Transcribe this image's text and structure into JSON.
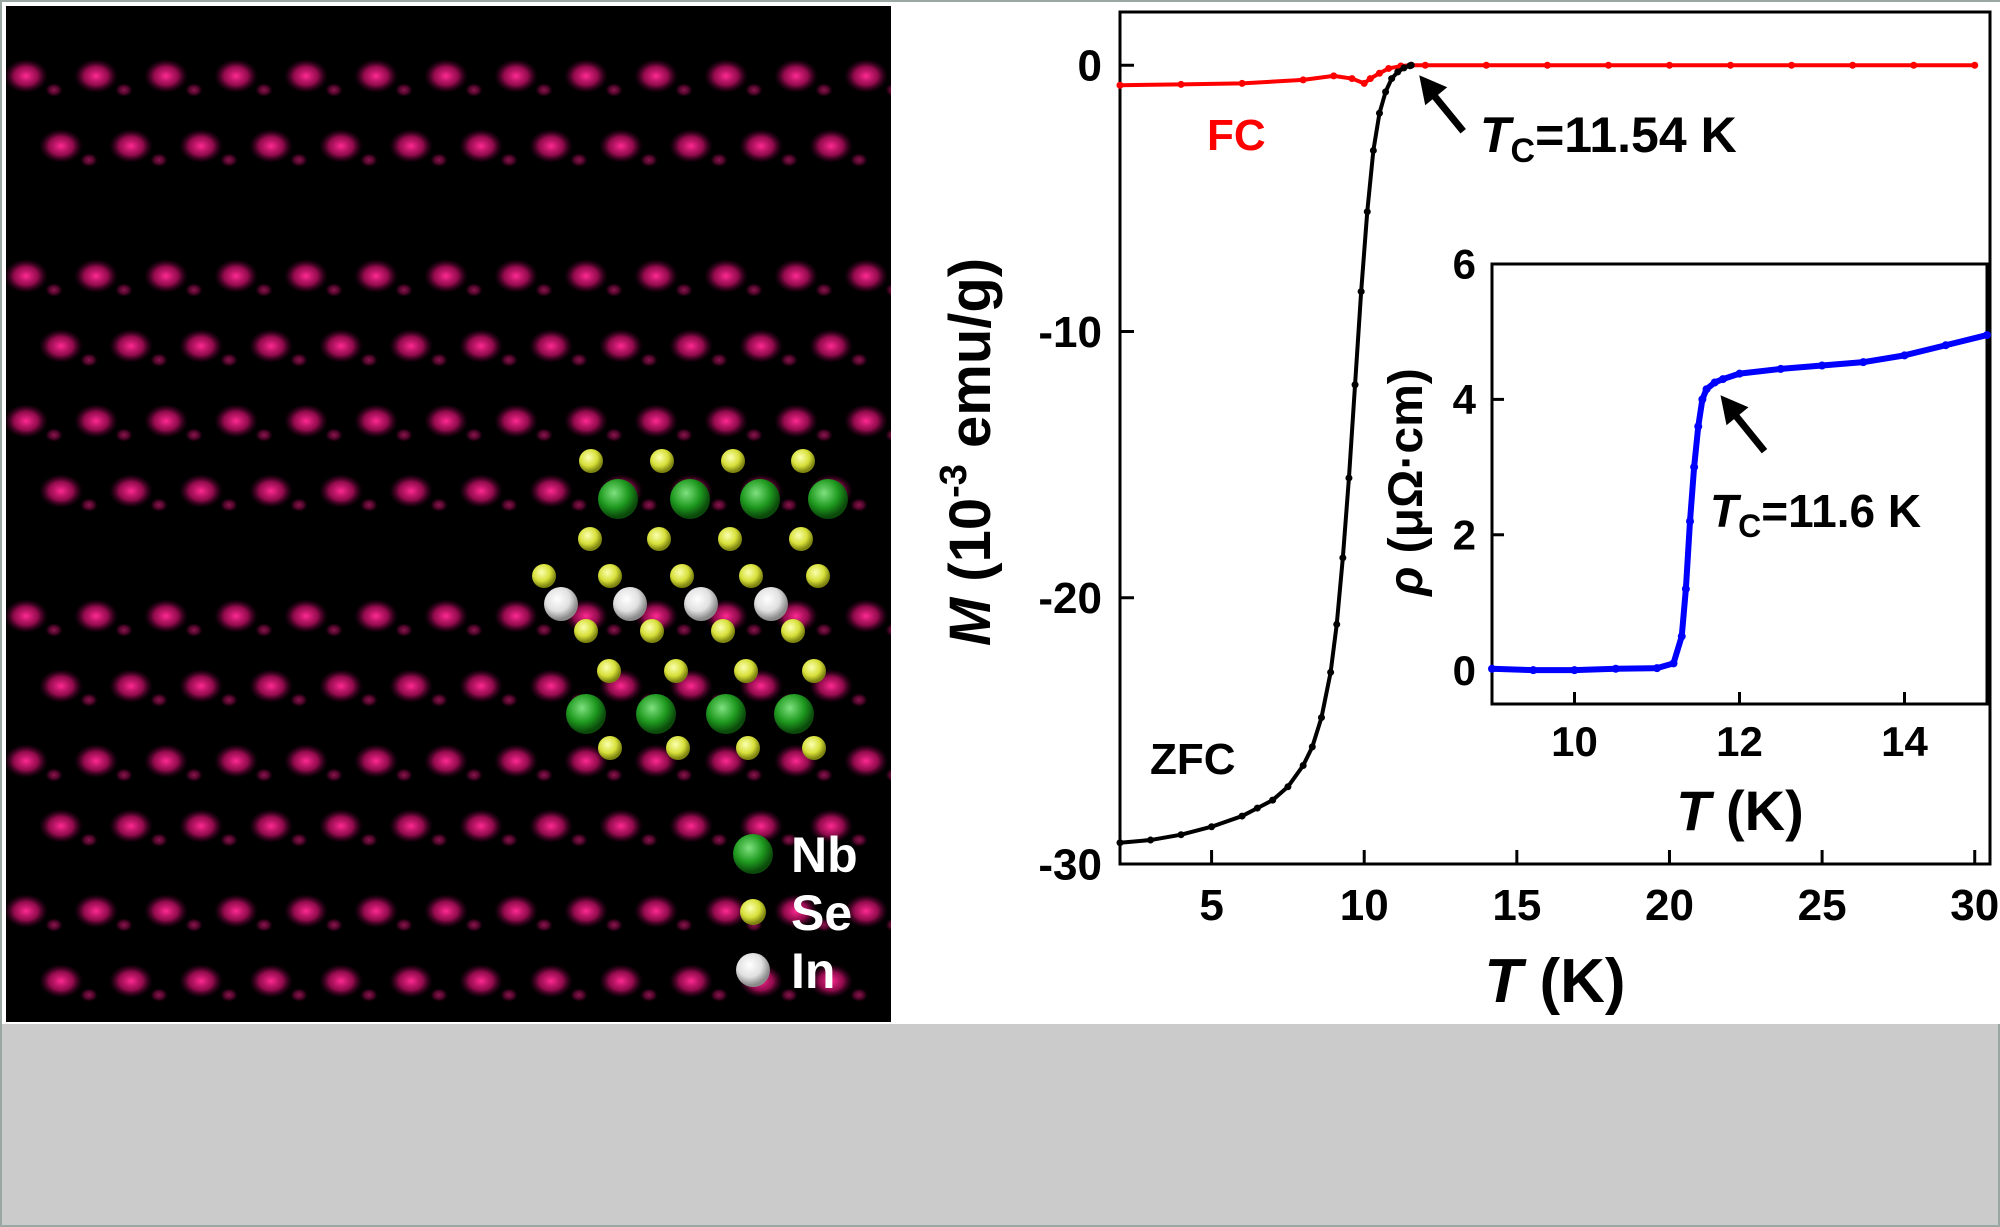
{
  "stem_image": {
    "legend": [
      {
        "label": "Nb",
        "color": "#1f9a1f"
      },
      {
        "label": "Se",
        "color": "#d7e03a"
      },
      {
        "label": "In",
        "color": "#f2f2f2"
      }
    ],
    "background_color": "#000000",
    "spot_color": "#ff1a8c"
  },
  "chart_data": [
    {
      "type": "line",
      "xlabel_symbol": "T",
      "xlabel_unit": " (K)",
      "ylabel_symbol": "M",
      "ylabel_prefix": " (10",
      "ylabel_exp": "-3",
      "ylabel_unit": " emu/g)",
      "xlim": [
        2,
        30.5
      ],
      "ylim": [
        -30,
        2
      ],
      "xticks": [
        5,
        10,
        15,
        20,
        25,
        30
      ],
      "yticks": [
        0,
        -10,
        -20,
        -30
      ],
      "series": [
        {
          "name": "FC",
          "color": "#ff0000",
          "x": [
            2,
            4,
            6,
            8,
            9,
            9.6,
            10,
            10.2,
            10.5,
            10.8,
            11.2,
            11.54,
            12,
            14,
            16,
            18,
            20,
            22,
            24,
            26,
            28,
            30
          ],
          "y": [
            -0.75,
            -0.72,
            -0.68,
            -0.55,
            -0.4,
            -0.5,
            -0.68,
            -0.5,
            -0.3,
            -0.12,
            -0.03,
            0,
            0,
            0,
            0,
            0,
            0,
            0,
            0,
            0,
            0,
            0
          ]
        },
        {
          "name": "ZFC",
          "color": "#000000",
          "x": [
            2,
            3,
            4,
            5,
            6,
            6.5,
            7,
            7.5,
            8,
            8.3,
            8.6,
            8.9,
            9.1,
            9.3,
            9.5,
            9.7,
            9.9,
            10.1,
            10.3,
            10.5,
            10.7,
            10.9,
            11.1,
            11.3,
            11.5,
            11.54
          ],
          "y": [
            -29.2,
            -29.1,
            -28.9,
            -28.6,
            -28.2,
            -27.9,
            -27.6,
            -27.1,
            -26.3,
            -25.6,
            -24.5,
            -22.8,
            -21.0,
            -18.5,
            -15.5,
            -12.0,
            -8.5,
            -5.5,
            -3.2,
            -1.8,
            -1.0,
            -0.5,
            -0.25,
            -0.1,
            -0.02,
            0
          ]
        }
      ],
      "annotation": {
        "symbol": "T",
        "sub": "C",
        "text": "=11.54 K",
        "x": 11.54,
        "y": 0
      }
    },
    {
      "type": "line",
      "inset": true,
      "xlabel_symbol": "T",
      "xlabel_unit": " (K)",
      "ylabel_symbol": "ρ",
      "ylabel_unit": " (μΩ·cm)",
      "xlim": [
        9,
        15
      ],
      "ylim": [
        -0.5,
        6
      ],
      "xticks": [
        10,
        12,
        14
      ],
      "yticks": [
        0,
        2,
        4,
        6
      ],
      "series": [
        {
          "color": "#0000ff",
          "x": [
            9,
            9.5,
            10,
            10.5,
            11,
            11.2,
            11.3,
            11.35,
            11.4,
            11.45,
            11.5,
            11.55,
            11.6,
            11.7,
            11.8,
            12,
            12.5,
            13,
            13.5,
            14,
            14.5,
            15
          ],
          "y": [
            0.02,
            0.0,
            0.0,
            0.02,
            0.03,
            0.1,
            0.5,
            1.2,
            2.2,
            3.0,
            3.6,
            4.0,
            4.15,
            4.25,
            4.3,
            4.38,
            4.45,
            4.5,
            4.55,
            4.65,
            4.8,
            4.95
          ]
        }
      ],
      "annotation": {
        "symbol": "T",
        "sub": "C",
        "text": "=11.6 K",
        "x": 11.6,
        "y": 4.15
      }
    }
  ]
}
